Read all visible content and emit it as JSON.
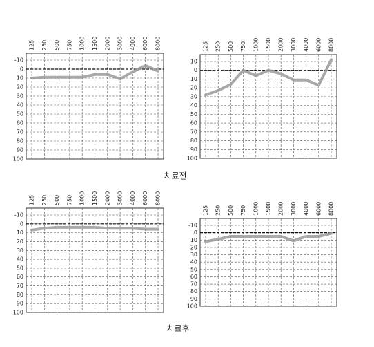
{
  "chart_data": [
    {
      "type": "line",
      "categories": [
        "125",
        "250",
        "500",
        "750",
        "1000",
        "1500",
        "2000",
        "3000",
        "4000",
        "6000",
        "8000"
      ],
      "values": [
        10,
        9,
        9,
        9,
        9,
        6,
        6,
        11,
        3,
        -4,
        2
      ],
      "color": "#9a9a9a",
      "ylim": [
        100,
        -10
      ],
      "yticks": [
        -10,
        0,
        10,
        20,
        30,
        40,
        50,
        60,
        70,
        80,
        90,
        100
      ],
      "grid": true,
      "reference_line": 0
    },
    {
      "type": "line",
      "categories": [
        "125",
        "250",
        "500",
        "750",
        "1000",
        "1500",
        "2000",
        "3000",
        "4000",
        "6000",
        "8000"
      ],
      "values": [
        28,
        23,
        16,
        0,
        6,
        0,
        4,
        11,
        11,
        17,
        -12
      ],
      "color": "#9a9a9a",
      "ylim": [
        100,
        -10
      ],
      "yticks": [
        -10,
        0,
        10,
        20,
        30,
        40,
        50,
        60,
        70,
        80,
        90,
        100
      ],
      "grid": true,
      "reference_line": 0
    },
    {
      "type": "line",
      "categories": [
        "125",
        "250",
        "500",
        "750",
        "1000",
        "1500",
        "2000",
        "3000",
        "4000",
        "6000",
        "8000"
      ],
      "values": [
        7,
        5,
        4,
        4,
        4,
        4,
        5,
        5,
        5,
        6,
        6
      ],
      "color": "#9a9a9a",
      "ylim": [
        100,
        -10
      ],
      "yticks": [
        -10,
        0,
        10,
        20,
        30,
        40,
        50,
        60,
        70,
        80,
        90,
        100
      ],
      "grid": true,
      "reference_line": 0
    },
    {
      "type": "line",
      "categories": [
        "125",
        "250",
        "500",
        "750",
        "1000",
        "1500",
        "2000",
        "3000",
        "4000",
        "6000",
        "8000"
      ],
      "values": [
        12,
        9,
        5,
        5,
        5,
        5,
        5,
        11,
        5,
        5,
        1
      ],
      "color": "#9a9a9a",
      "ylim": [
        100,
        -10
      ],
      "yticks": [
        -10,
        0,
        10,
        20,
        30,
        40,
        50,
        60,
        70,
        80,
        90,
        100
      ],
      "grid": true,
      "reference_line": 0
    }
  ],
  "captions": [
    "치료전",
    "치료후"
  ]
}
